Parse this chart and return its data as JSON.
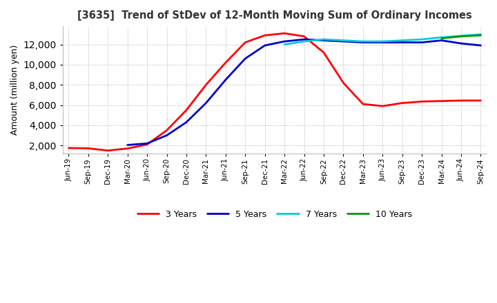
{
  "title": "[3635]  Trend of StDev of 12-Month Moving Sum of Ordinary Incomes",
  "ylabel": "Amount (million yen)",
  "ylim": [
    1200,
    13800
  ],
  "yticks": [
    2000,
    4000,
    6000,
    8000,
    10000,
    12000
  ],
  "background_color": "#ffffff",
  "plot_background": "#ffffff",
  "grid_color": "#aaaaaa",
  "legend_labels": [
    "3 Years",
    "5 Years",
    "7 Years",
    "10 Years"
  ],
  "legend_colors": [
    "#ff0000",
    "#0000cd",
    "#00ccdd",
    "#009900"
  ],
  "x_labels": [
    "Jun-19",
    "Sep-19",
    "Dec-19",
    "Mar-20",
    "Jun-20",
    "Sep-20",
    "Dec-20",
    "Mar-21",
    "Jun-21",
    "Sep-21",
    "Dec-21",
    "Mar-22",
    "Jun-22",
    "Sep-22",
    "Dec-22",
    "Mar-23",
    "Jun-23",
    "Sep-23",
    "Dec-23",
    "Mar-24",
    "Jun-24",
    "Sep-24"
  ],
  "series": {
    "3yr": [
      1750,
      1720,
      1500,
      1700,
      2100,
      3500,
      5500,
      8000,
      10200,
      12200,
      12900,
      13100,
      12800,
      11200,
      8200,
      6100,
      5900,
      6200,
      6350,
      6400,
      6450,
      6450
    ],
    "5yr": [
      null,
      null,
      null,
      2050,
      2200,
      3000,
      4300,
      6200,
      8500,
      10600,
      11900,
      12300,
      12500,
      12400,
      12300,
      12200,
      12200,
      12200,
      12200,
      12400,
      12100,
      11900
    ],
    "7yr": [
      null,
      null,
      null,
      null,
      null,
      null,
      null,
      null,
      null,
      null,
      null,
      12000,
      12300,
      12500,
      12400,
      12300,
      12300,
      12400,
      12500,
      12700,
      12850,
      13000
    ],
    "10yr": [
      null,
      null,
      null,
      null,
      null,
      null,
      null,
      null,
      null,
      null,
      null,
      null,
      null,
      null,
      null,
      null,
      null,
      null,
      null,
      12600,
      12800,
      12900
    ]
  }
}
